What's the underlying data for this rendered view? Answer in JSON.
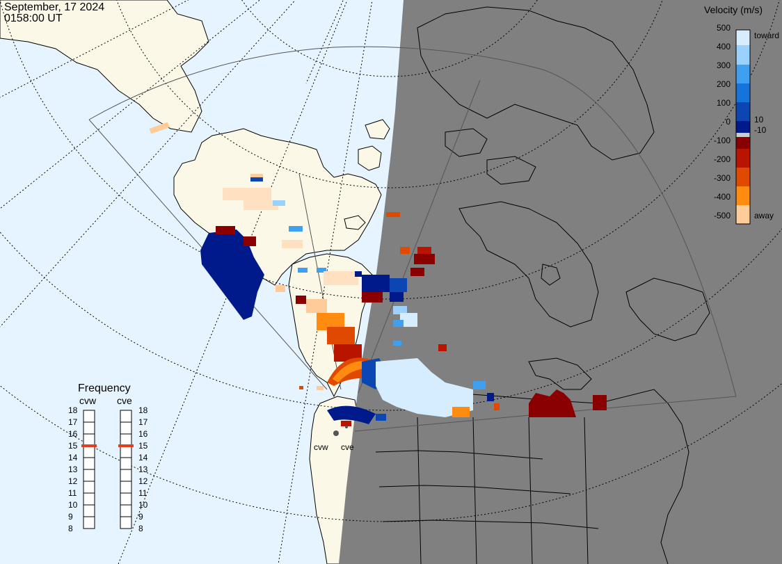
{
  "header": {
    "date": "September, 17 2024",
    "time": "0158:00 UT"
  },
  "colorbar": {
    "title": "Velocity (m/s)",
    "toward_label": "toward",
    "away_label": "away",
    "ticks": [
      "500",
      "400",
      "300",
      "200",
      "100",
      "10",
      "0",
      "-10",
      "-100",
      "-200",
      "-300",
      "-400",
      "-500"
    ],
    "colors": [
      "#d6ecff",
      "#9bd1ff",
      "#3fa0f2",
      "#1673d9",
      "#0b46b3",
      "#001a8c",
      "#cccccc",
      "#8a0000",
      "#b81400",
      "#e04a00",
      "#ff8c10",
      "#ffcc99"
    ]
  },
  "frequency": {
    "title": "Frequency",
    "radars": [
      "cvw",
      "cve"
    ],
    "ticks": [
      "18",
      "17",
      "16",
      "15",
      "14",
      "13",
      "12",
      "11",
      "10",
      "9",
      "8"
    ],
    "cvw_value_mhz": 15,
    "cve_value_mhz": 15,
    "marker_color": "#e04020"
  },
  "sites": [
    "cvw",
    "cve"
  ],
  "map": {
    "ocean_color": "#e6f4ff",
    "land_color": "#fbf8e8",
    "night_color": "#808080"
  }
}
